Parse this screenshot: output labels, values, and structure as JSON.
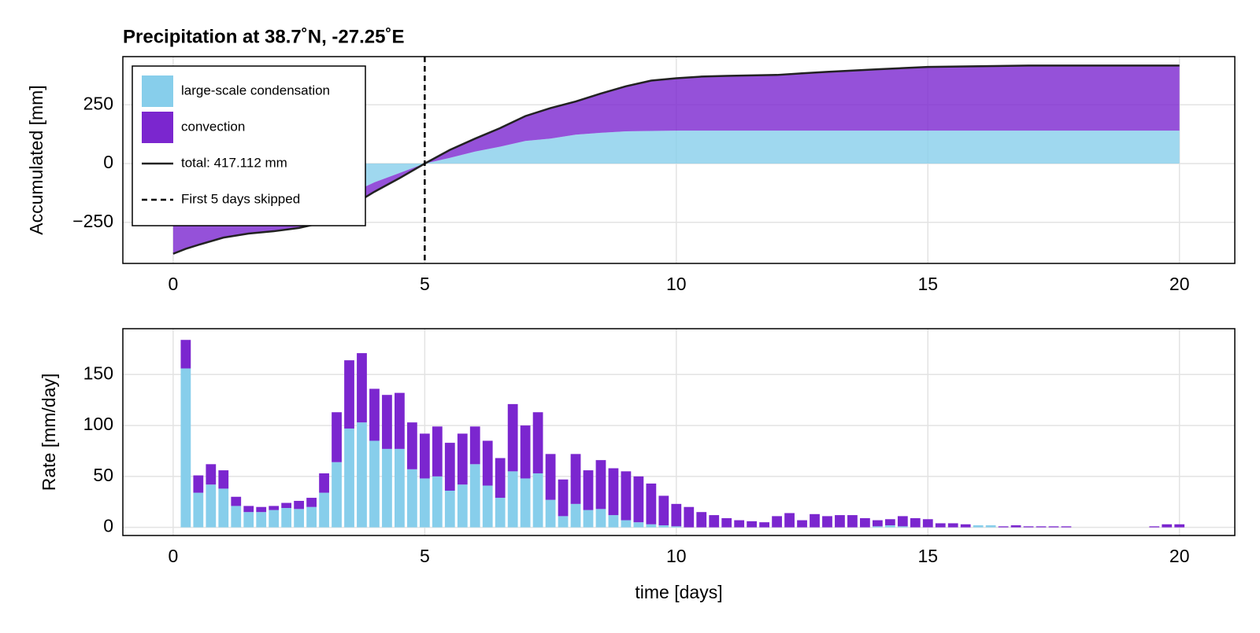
{
  "chart_data": [
    {
      "type": "area",
      "title": "Precipitation at 38.7˚N, -27.25˚E",
      "ylabel": "Accumulated [mm]",
      "x": [
        0,
        0.25,
        0.5,
        1,
        1.5,
        2,
        2.5,
        3,
        3.5,
        4,
        4.5,
        5,
        5.5,
        6,
        6.5,
        7,
        7.5,
        8,
        8.5,
        9,
        9.5,
        10,
        10.5,
        11,
        12,
        12.5,
        13,
        14,
        15,
        16,
        17,
        18,
        19,
        20
      ],
      "series": [
        {
          "name": "large-scale condensation",
          "color": "#87ceeb",
          "values": [
            -241,
            -220,
            -211,
            -191,
            -182,
            -174,
            -165,
            -155,
            -130,
            -80,
            -40,
            0,
            24,
            51,
            72,
            96,
            106,
            123,
            131,
            137,
            139,
            140,
            140,
            140,
            140,
            140,
            140,
            140,
            140,
            140,
            140,
            140,
            140,
            140
          ]
        },
        {
          "name": "convection",
          "color": "#7b26cf",
          "values": [
            -143,
            -143,
            -135,
            -124,
            -116,
            -114,
            -109,
            -95,
            -55,
            -40,
            -22,
            0,
            34,
            55,
            79,
            106,
            130,
            141,
            167,
            192,
            214,
            223,
            230,
            233,
            237,
            244,
            250,
            261,
            271,
            274,
            277,
            277,
            277,
            277.112
          ]
        }
      ],
      "line": {
        "name": "total: 417.112 mm",
        "color": "#222222",
        "values": [
          -384,
          -363,
          -346,
          -315,
          -298,
          -288,
          -274,
          -250,
          -185,
          -120,
          -62,
          0,
          58,
          106,
          151,
          202,
          236,
          264,
          298,
          329,
          353,
          363,
          370,
          373,
          377,
          384,
          390,
          401,
          411,
          414,
          417,
          417,
          417,
          417.112
        ]
      },
      "vline": {
        "name": "First 5 days skipped",
        "value": 5
      },
      "xlim": [
        -1,
        21.1
      ],
      "ylim": [
        -425,
        455
      ],
      "xticks": [
        0,
        5,
        10,
        15,
        20
      ],
      "yticks": [
        {
          "value": -250,
          "label": "−250"
        },
        0,
        250
      ],
      "grid": true,
      "legend": "top-left"
    },
    {
      "type": "bar",
      "xlabel": "time [days]",
      "ylabel": "Rate [mm/day]",
      "x": [
        0.25,
        0.5,
        0.75,
        1,
        1.25,
        1.5,
        1.75,
        2,
        2.25,
        2.5,
        2.75,
        3,
        3.25,
        3.5,
        3.75,
        4,
        4.25,
        4.5,
        4.75,
        5,
        5.25,
        5.5,
        5.75,
        6,
        6.25,
        6.5,
        6.75,
        7,
        7.25,
        7.5,
        7.75,
        8,
        8.25,
        8.5,
        8.75,
        9,
        9.25,
        9.5,
        9.75,
        10,
        10.25,
        10.5,
        10.75,
        11,
        11.25,
        11.5,
        11.75,
        12,
        12.25,
        12.5,
        12.75,
        13,
        13.25,
        13.5,
        13.75,
        14,
        14.25,
        14.5,
        14.75,
        15,
        15.25,
        15.5,
        15.75,
        16,
        16.25,
        16.5,
        16.75,
        17,
        17.25,
        17.5,
        17.75,
        18,
        18.25,
        18.5,
        18.75,
        19,
        19.25,
        19.5,
        19.75,
        20
      ],
      "bar_width": 0.2,
      "series": [
        {
          "color": "#87ceeb",
          "values": [
            156,
            34,
            42,
            38,
            21,
            15,
            15,
            17,
            19,
            18,
            20,
            34,
            64,
            97,
            103,
            85,
            77,
            77,
            57,
            48,
            50,
            36,
            42,
            62,
            41,
            29,
            55,
            48,
            53,
            27,
            11,
            23,
            17,
            18,
            12,
            7,
            5,
            3,
            2,
            1,
            0,
            0,
            0,
            0,
            0,
            0,
            0,
            0,
            0,
            0,
            0,
            0,
            0,
            0,
            0,
            1,
            2,
            1,
            0,
            0,
            0,
            0,
            0,
            2,
            2,
            0,
            0,
            0,
            0,
            0,
            0,
            0,
            0,
            0,
            0,
            0,
            0,
            0,
            0,
            0
          ]
        },
        {
          "color": "#7b26cf",
          "values": [
            28,
            17,
            20,
            18,
            9,
            6,
            5,
            4,
            5,
            8,
            9,
            19,
            49,
            67,
            68,
            51,
            53,
            55,
            46,
            44,
            49,
            47,
            50,
            37,
            44,
            39,
            66,
            52,
            60,
            45,
            36,
            49,
            39,
            48,
            46,
            48,
            45,
            40,
            29,
            22,
            20,
            15,
            12,
            9,
            7,
            6,
            5,
            11,
            14,
            7,
            13,
            11,
            12,
            12,
            9,
            6,
            6,
            10,
            9,
            8,
            4,
            4,
            3,
            0,
            0,
            1,
            2,
            1,
            1,
            1,
            1,
            0,
            0,
            0,
            0,
            0,
            0,
            1,
            3,
            3
          ]
        }
      ],
      "xlim": [
        -1,
        21.1
      ],
      "ylim": [
        -8,
        195
      ],
      "xticks": [
        0,
        5,
        10,
        15,
        20
      ],
      "yticks": [
        0,
        50,
        100,
        150
      ],
      "grid": true
    }
  ]
}
